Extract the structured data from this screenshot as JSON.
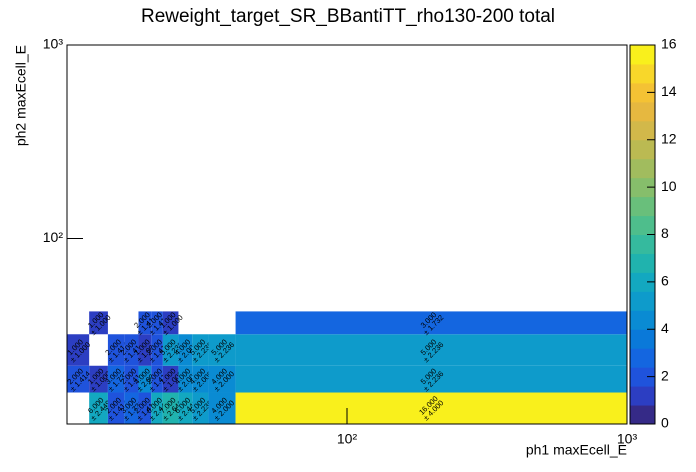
{
  "chart_data": {
    "type": "heatmap",
    "title": "Reweight_target_SR_BBantiTT_rho130-200 total",
    "x_label": "ph1 maxEcell_E",
    "y_label": "ph2 maxEcell_E",
    "log_x": true,
    "log_y": true,
    "xlim": [
      10,
      1000
    ],
    "ylim": [
      11,
      1000
    ],
    "xticks": [
      {
        "value": 100,
        "label": "10²"
      },
      {
        "value": 1000,
        "label": "10³"
      }
    ],
    "yticks": [
      {
        "value": 100,
        "label": "10²"
      },
      {
        "value": 1000,
        "label": "10³"
      }
    ],
    "xbins": [
      10,
      12,
      14,
      16,
      18,
      20,
      22,
      25,
      28,
      32,
      40,
      1000
    ],
    "ybins": [
      11,
      16,
      22,
      32,
      42
    ],
    "z": [
      [
        null,
        6,
        2,
        3,
        2,
        6,
        7,
        6,
        5,
        4,
        16
      ],
      [
        2,
        1,
        3,
        2,
        4,
        2,
        1,
        4,
        4,
        4,
        5
      ],
      [
        1,
        null,
        2,
        2,
        1,
        2,
        5,
        4,
        5,
        5,
        5
      ],
      [
        null,
        1,
        null,
        null,
        2,
        2,
        1,
        null,
        null,
        null,
        3
      ]
    ],
    "z_labels": [
      [
        null,
        "6.000",
        "2.000",
        "3.000",
        "2.000",
        "6.000",
        "7.000",
        "6.000",
        "5.000",
        "4.000",
        "16.000"
      ],
      [
        "2.000",
        "1.000",
        "3.000",
        "2.000",
        "4.000",
        "2.000",
        "1.000",
        "4.000",
        "4.000",
        "4.000",
        "5.000"
      ],
      [
        "1.000",
        null,
        "2.000",
        "2.000",
        "1.000",
        "2.000",
        "5.000",
        "4.000",
        "5.000",
        "5.000",
        "5.000"
      ],
      [
        null,
        "1.000",
        null,
        null,
        "2.000",
        "2.000",
        "1.000",
        null,
        null,
        null,
        "3.000"
      ]
    ],
    "errors": [
      [
        null,
        2.449,
        1.414,
        1.732,
        1.414,
        2.449,
        2.646,
        2.449,
        2.236,
        2.0,
        4.0
      ],
      [
        1.414,
        1.0,
        1.732,
        1.414,
        2.0,
        1.414,
        1.0,
        2.0,
        2.0,
        2.0,
        2.236
      ],
      [
        1.0,
        null,
        1.414,
        1.414,
        1.0,
        1.414,
        2.236,
        2.0,
        2.236,
        2.236,
        2.236
      ],
      [
        null,
        1.0,
        null,
        null,
        1.414,
        1.414,
        1.0,
        null,
        null,
        null,
        1.732
      ]
    ],
    "error_labels": [
      [
        null,
        "± 2.449",
        "± 1.414",
        "± 1.732",
        "± 1.414",
        "± 2.449",
        "± 2.646",
        "± 2.449",
        "± 2.236",
        "± 2.000",
        "± 4.000"
      ],
      [
        "± 1.414",
        "± 1.000",
        "± 1.732",
        "± 1.414",
        "± 2.000",
        "± 1.414",
        "± 1.000",
        "± 2.000",
        "± 2.000",
        "± 2.000",
        "± 2.236"
      ],
      [
        "± 1.000",
        null,
        "± 1.414",
        "± 1.414",
        "± 1.000",
        "± 1.414",
        "± 2.236",
        "± 2.000",
        "± 2.236",
        "± 2.236",
        "± 2.236"
      ],
      [
        null,
        "± 1.000",
        null,
        null,
        "± 1.414",
        "± 1.414",
        "± 1.000",
        null,
        null,
        null,
        "± 1.732"
      ]
    ],
    "zlim": [
      0,
      16
    ],
    "zticks": [
      0,
      2,
      4,
      6,
      8,
      10,
      12,
      14,
      16
    ],
    "palette": [
      "#352a87",
      "#2c3ec2",
      "#1f53dc",
      "#1466e0",
      "#0a79d9",
      "#0a8bd3",
      "#0e9bcb",
      "#13a8c0",
      "#20b3ae",
      "#35ba9e",
      "#4ebe8c",
      "#69bf7b",
      "#86be6b",
      "#a1bc5e",
      "#bbba52",
      "#d2b84a",
      "#e6b840",
      "#f4c234",
      "#f8d72a",
      "#f9f01c"
    ]
  }
}
